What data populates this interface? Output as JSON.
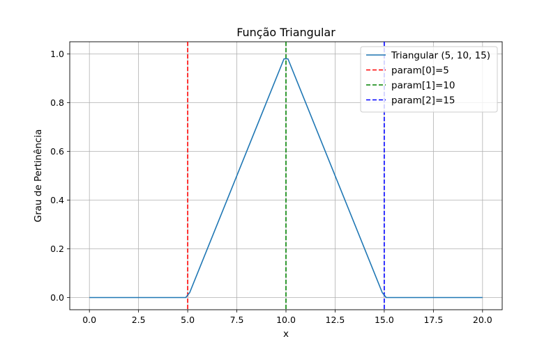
{
  "chart_data": {
    "type": "line",
    "title": "Função Triangular",
    "xlabel": "x",
    "ylabel": "Grau de Pertinência",
    "xlim": [
      -1,
      21
    ],
    "ylim": [
      -0.05,
      1.05
    ],
    "xticks": [
      0.0,
      2.5,
      5.0,
      7.5,
      10.0,
      12.5,
      15.0,
      17.5,
      20.0
    ],
    "xtick_labels": [
      "0.0",
      "2.5",
      "5.0",
      "7.5",
      "10.0",
      "12.5",
      "15.0",
      "17.5",
      "20.0"
    ],
    "yticks": [
      0.0,
      0.2,
      0.4,
      0.6,
      0.8,
      1.0
    ],
    "ytick_labels": [
      "0.0",
      "0.2",
      "0.4",
      "0.6",
      "0.8",
      "1.0"
    ],
    "grid": true,
    "legend_position": "top-right",
    "series": [
      {
        "name": "Triangular (5, 10, 15)",
        "color": "#1f77b4",
        "style": "solid",
        "x": [
          0.0,
          4.9,
          5.1,
          9.9,
          10.1,
          14.9,
          15.1,
          20.0
        ],
        "y": [
          0.0,
          0.0,
          0.02,
          0.98,
          0.98,
          0.02,
          0.0,
          0.0
        ]
      }
    ],
    "vlines": [
      {
        "name": "param[0]=5",
        "x": 5,
        "color": "#ff0000",
        "style": "dashed"
      },
      {
        "name": "param[1]=10",
        "x": 10,
        "color": "#008000",
        "style": "dashed"
      },
      {
        "name": "param[2]=15",
        "x": 15,
        "color": "#0000ff",
        "style": "dashed"
      }
    ]
  }
}
